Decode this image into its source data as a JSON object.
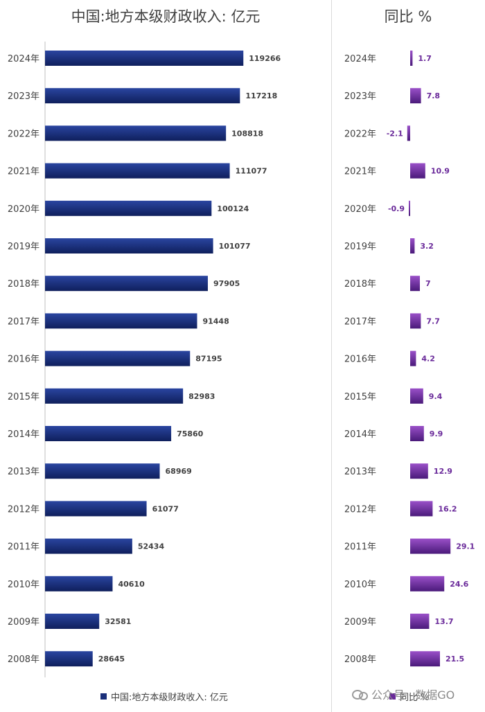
{
  "chart_data": [
    {
      "type": "bar",
      "orientation": "horizontal",
      "title": "中国:地方本级财政收入: 亿元",
      "categories": [
        "2024年",
        "2023年",
        "2022年",
        "2021年",
        "2020年",
        "2019年",
        "2018年",
        "2017年",
        "2016年",
        "2015年",
        "2014年",
        "2013年",
        "2012年",
        "2011年",
        "2010年",
        "2009年",
        "2008年"
      ],
      "series": [
        {
          "name": "中国:地方本级财政收入: 亿元",
          "values": [
            119266,
            117218,
            108818,
            111077,
            100124,
            101077,
            97905,
            91448,
            87195,
            82983,
            75860,
            68969,
            61077,
            52434,
            40610,
            32581,
            28645
          ]
        }
      ],
      "xlim": [
        0,
        140000
      ],
      "grid": false,
      "legend": "bottom",
      "color": "#1a2f7a"
    },
    {
      "type": "bar",
      "orientation": "horizontal",
      "title": "同比 %",
      "categories": [
        "2024年",
        "2023年",
        "2022年",
        "2021年",
        "2020年",
        "2019年",
        "2018年",
        "2017年",
        "2016年",
        "2015年",
        "2014年",
        "2013年",
        "2012年",
        "2011年",
        "2010年",
        "2009年",
        "2008年"
      ],
      "series": [
        {
          "name": "同比 %",
          "values": [
            1.7,
            7.8,
            -2.1,
            10.9,
            -0.9,
            3.2,
            7,
            7.7,
            4.2,
            9.4,
            9.9,
            12.9,
            16.2,
            29.1,
            24.6,
            13.7,
            21.5
          ]
        }
      ],
      "xlim": [
        -5,
        50
      ],
      "grid": false,
      "legend": "bottom",
      "color": "#6a2a9a"
    }
  ],
  "watermark": "公众号 · 数据GO"
}
